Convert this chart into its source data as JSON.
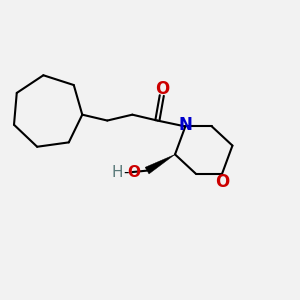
{
  "bg_color": "#f2f2f2",
  "bond_color": "#000000",
  "N_color": "#0000cc",
  "O_color": "#cc0000",
  "OH_color": "#2e8b57",
  "H_color": "#5a7a7a",
  "line_width": 1.5,
  "figsize": [
    3.0,
    3.0
  ],
  "dpi": 100,
  "xlim": [
    0,
    10
  ],
  "ylim": [
    0,
    10
  ]
}
